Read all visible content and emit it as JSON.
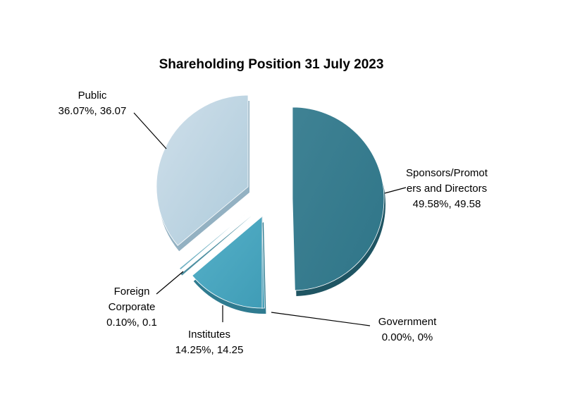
{
  "chart_data": {
    "type": "pie",
    "title": "Shareholding Position 31 July 2023",
    "slices": [
      {
        "name": "Sponsors/Promoters and Directors",
        "value": 49.58,
        "percent": "49.58%",
        "value_label": "49.58",
        "label_lines": [
          "Sponsors/Promot",
          "ers and Directors",
          "49.58%, 49.58"
        ],
        "color": "#3a8a9b"
      },
      {
        "name": "Government",
        "value": 0,
        "percent": "0.00%",
        "value_label": "0%",
        "label_lines": [
          "Government",
          "0.00%, 0%"
        ],
        "color": "#8fb7c6"
      },
      {
        "name": "Institutes",
        "value": 14.25,
        "percent": "14.25%",
        "value_label": "14.25",
        "label_lines": [
          "Institutes",
          "14.25%, 14.25"
        ],
        "color": "#4ba8c2"
      },
      {
        "name": "Foreign Corporate",
        "value": 0.1,
        "percent": "0.10%",
        "value_label": "0.1",
        "label_lines": [
          "Foreign",
          "Corporate",
          "0.10%, 0.1"
        ],
        "color": "#72b2c4"
      },
      {
        "name": "Public",
        "value": 36.07,
        "percent": "36.07%",
        "value_label": "36.07",
        "label_lines": [
          "Public",
          "36.07%, 36.07"
        ],
        "color": "#b8d2e0"
      }
    ]
  }
}
